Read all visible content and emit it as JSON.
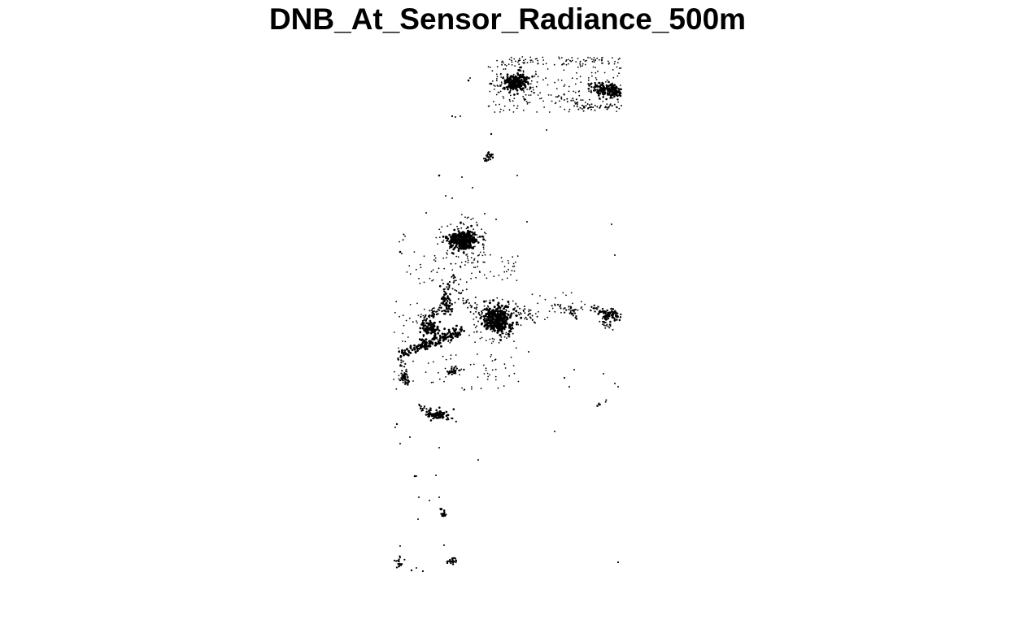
{
  "plot": {
    "title": "DNB_At_Sensor_Radiance_500m"
  },
  "colors": {
    "background": "#ffffff",
    "points": "#000000"
  },
  "chart_data": {
    "type": "scatter",
    "title": "DNB_At_Sensor_Radiance_500m",
    "xlabel": "",
    "ylabel": "",
    "legend": "none",
    "grid": false,
    "axes": false
  }
}
